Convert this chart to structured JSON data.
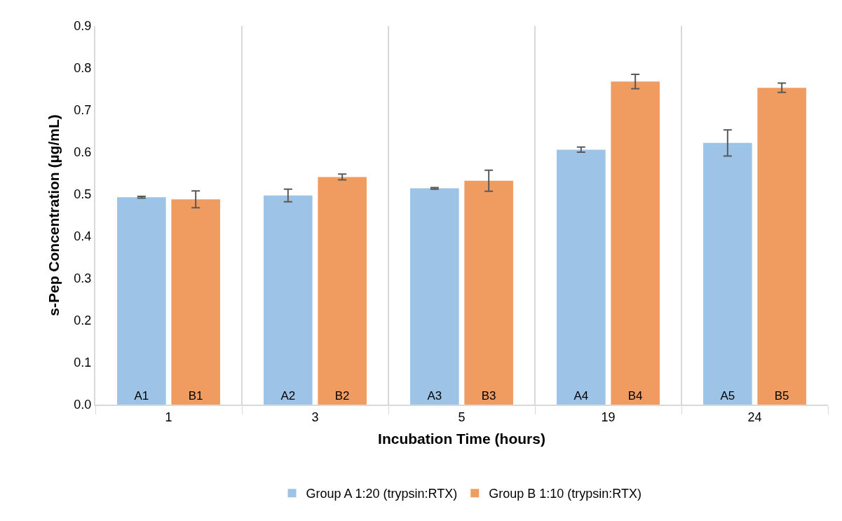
{
  "chart_data": {
    "type": "bar",
    "xlabel": "Incubation Time (hours)",
    "ylabel": "s-Pep Concentration (µg/mL)",
    "categories": [
      "1",
      "3",
      "5",
      "19",
      "24"
    ],
    "series": [
      {
        "name": "Group A 1:20 (trypsin:RTX)",
        "color": "#9dc3e6",
        "values": [
          0.493,
          0.497,
          0.514,
          0.606,
          0.622
        ],
        "errors": [
          0.002,
          0.015,
          0.002,
          0.006,
          0.031
        ],
        "value_labels": [
          "A1",
          "A2",
          "A3",
          "A4",
          "A5"
        ]
      },
      {
        "name": "Group B 1:10 (trypsin:RTX)",
        "color": "#f09c60",
        "values": [
          0.488,
          0.541,
          0.532,
          0.768,
          0.753
        ],
        "errors": [
          0.02,
          0.007,
          0.025,
          0.017,
          0.011
        ],
        "value_labels": [
          "B1",
          "B2",
          "B3",
          "B4",
          "B5"
        ]
      }
    ],
    "ylim": [
      0,
      0.9
    ],
    "yticks": [
      "0.0",
      0.1,
      0.2,
      0.3,
      0.4,
      0.5,
      0.6,
      0.7,
      0.8,
      0.9
    ],
    "grid": "x",
    "legend": "bottom"
  }
}
